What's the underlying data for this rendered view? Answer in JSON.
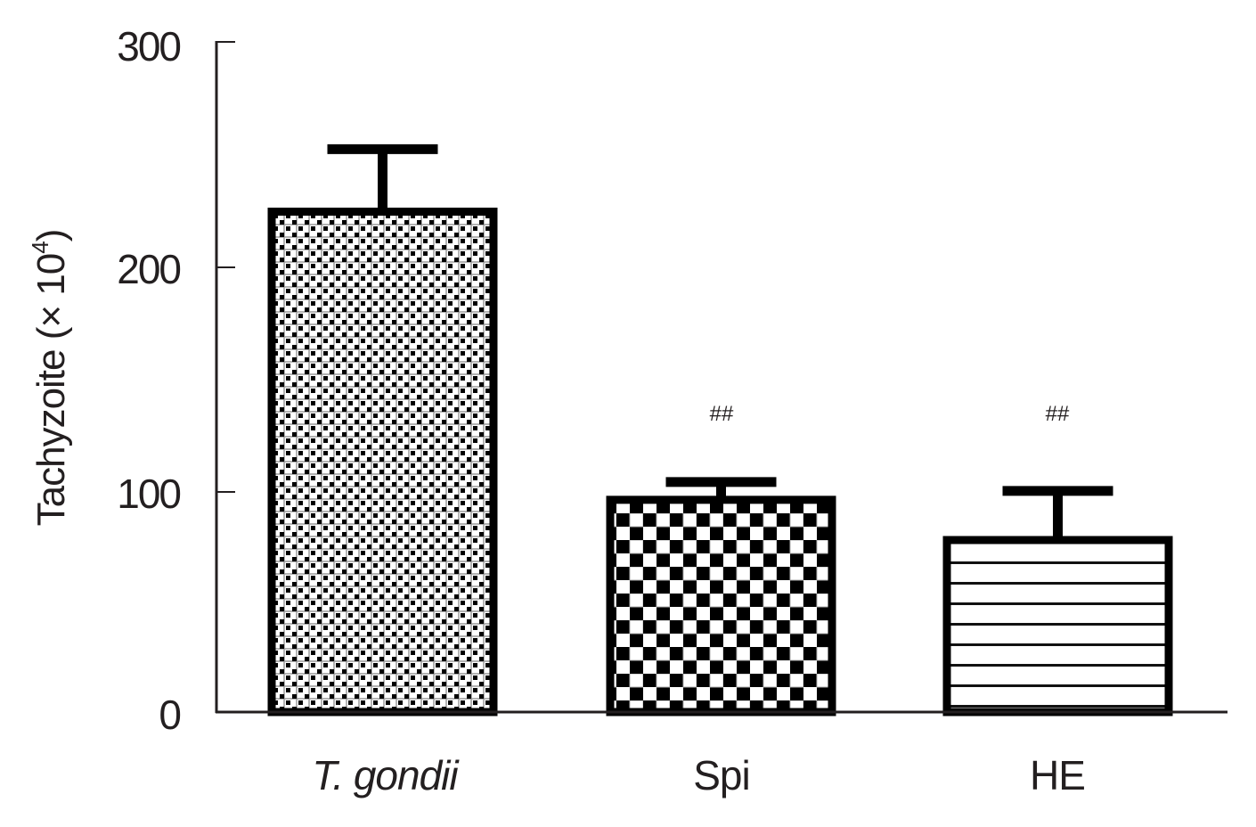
{
  "chart_data": {
    "type": "bar",
    "title": "",
    "xlabel": "",
    "ylabel": "Tachyzoite (× 10⁴)",
    "ylabel_parts": {
      "main": "Tachyzoite (",
      "times": "×",
      "base": " 10",
      "exp": "4",
      "close": ")"
    },
    "categories": [
      "T. gondii",
      "Spi",
      "HE"
    ],
    "category_italic": [
      true,
      false,
      false
    ],
    "values": [
      224,
      95,
      77
    ],
    "error_upper": [
      252,
      103,
      99
    ],
    "error_sd": [
      28,
      8,
      22
    ],
    "annotations": [
      "",
      "##",
      "##"
    ],
    "patterns": [
      "fine-checker",
      "coarse-checker",
      "horizontal-lines"
    ],
    "ylim": [
      0,
      300
    ],
    "yticks": [
      0,
      100,
      200,
      300
    ],
    "ytick_labels": [
      "0",
      "100",
      "200",
      "300"
    ],
    "grid": false,
    "legend": null
  },
  "colors": {
    "ink": "#000000",
    "axis": "#231f20",
    "background": "#ffffff",
    "pattern_grey": "#bfbfbf"
  }
}
